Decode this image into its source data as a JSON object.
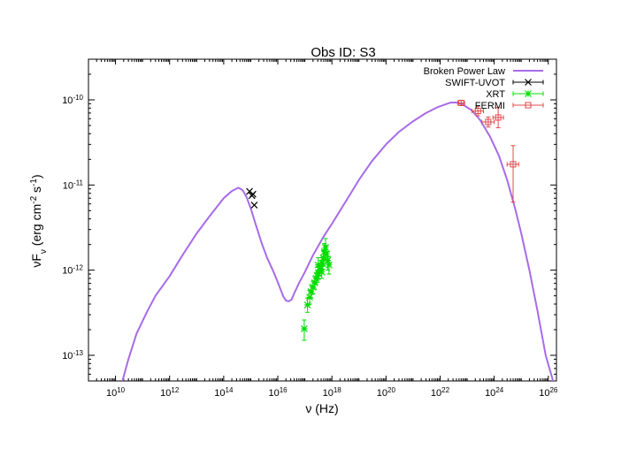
{
  "chart_data": {
    "type": "scatter",
    "title": "Obs ID: S3",
    "xlabel": "ν (Hz)",
    "ylabel": "νF_ν (erg cm^-2 s^-1)",
    "xscale": "log",
    "yscale": "log",
    "xlim": [
      1000000000.0,
      2e+26
    ],
    "ylim": [
      5e-14,
      3e-10
    ],
    "grid": false,
    "legend_position": "top-right",
    "x_ticks": [
      {
        "value": 10000000000.0,
        "base": "10",
        "exp": "10"
      },
      {
        "value": 1000000000000.0,
        "base": "10",
        "exp": "12"
      },
      {
        "value": 100000000000000.0,
        "base": "10",
        "exp": "14"
      },
      {
        "value": 1e+16,
        "base": "10",
        "exp": "16"
      },
      {
        "value": 1e+18,
        "base": "10",
        "exp": "18"
      },
      {
        "value": 1e+20,
        "base": "10",
        "exp": "20"
      },
      {
        "value": 1e+22,
        "base": "10",
        "exp": "22"
      },
      {
        "value": 1e+24,
        "base": "10",
        "exp": "24"
      },
      {
        "value": 1e+26,
        "base": "10",
        "exp": "26"
      }
    ],
    "y_ticks": [
      {
        "value": 1e-13,
        "base": "10",
        "exp": "-13"
      },
      {
        "value": 1e-12,
        "base": "10",
        "exp": "-12"
      },
      {
        "value": 1e-11,
        "base": "10",
        "exp": "-11"
      },
      {
        "value": 1e-10,
        "base": "10",
        "exp": "-10"
      }
    ],
    "series": [
      {
        "name": "Broken Power Law",
        "kind": "line",
        "color": "#a86be8",
        "x": [
          18000000000.0,
          30000000000.0,
          60000000000.0,
          150000000000.0,
          300000000000.0,
          1000000000000.0,
          3000000000000.0,
          10000000000000.0,
          30000000000000.0,
          100000000000000.0,
          200000000000000.0,
          350000000000000.0,
          500000000000000.0,
          700000000000000.0,
          1000000000000000.0,
          1500000000000000.0,
          2500000000000000.0,
          4000000000000000.0,
          7000000000000000.0,
          1e+16,
          1.3e+16,
          1.6e+16,
          2e+16,
          2.5e+16,
          3.2e+16,
          4e+16,
          6e+16,
          1e+17,
          2e+17,
          5e+17,
          1e+18,
          2e+18,
          5e+18,
          1e+19,
          3e+19,
          1e+20,
          3e+20,
          1e+21,
          3e+21,
          8e+21,
          1.5e+22,
          2.5e+22,
          4e+22,
          7e+22,
          1.5e+23,
          3e+23,
          7e+23,
          1.5e+24,
          3e+24,
          6e+24,
          1e+25,
          2e+25,
          4e+25,
          8e+25,
          1.5e+26,
          2e+26
        ],
        "y": [
          5e-14,
          9e-14,
          1.8e-13,
          3.3e-13,
          5e-13,
          8.5e-13,
          1.5e-12,
          2.7e-12,
          4.3e-12,
          7e-12,
          8.5e-12,
          9.3e-12,
          8.7e-12,
          7.2e-12,
          5.3e-12,
          3.5e-12,
          2.1e-12,
          1.4e-12,
          9.5e-13,
          7.2e-13,
          5.8e-13,
          4.9e-13,
          4.4e-13,
          4.3e-13,
          4.5e-13,
          5.3e-13,
          7e-13,
          9.5e-13,
          1.5e-12,
          2.5e-12,
          3.5e-12,
          5e-12,
          8e-12,
          1.15e-11,
          1.9e-11,
          3e-11,
          4.2e-11,
          5.6e-11,
          7e-11,
          8.2e-11,
          8.8e-11,
          9.3e-11,
          9.3e-11,
          8.8e-11,
          7.5e-11,
          5.8e-11,
          3.7e-11,
          2.2e-11,
          1.15e-11,
          5.2e-12,
          2.7e-12,
          1e-12,
          3.3e-13,
          1e-13,
          5e-14,
          3e-14
        ]
      },
      {
        "name": "SWIFT-UVOT",
        "kind": "points",
        "marker": "x",
        "color": "#000000",
        "points": [
          {
            "x": 900000000000000.0,
            "y": 8.4e-12
          },
          {
            "x": 1100000000000000.0,
            "y": 7.5e-12
          },
          {
            "x": 1200000000000000.0,
            "y": 7.8e-12
          },
          {
            "x": 1350000000000000.0,
            "y": 5.8e-12
          }
        ]
      },
      {
        "name": "XRT",
        "kind": "points",
        "marker": "asterisk",
        "color": "#00dd00",
        "points": [
          {
            "x": 9.5e+16,
            "y": 2.05e-13,
            "yerr": [
              1.5e-13,
              2.6e-13
            ]
          },
          {
            "x": 1.25e+17,
            "y": 3.9e-13,
            "yerr": [
              3.2e-13,
              4.7e-13
            ]
          },
          {
            "x": 1.5e+17,
            "y": 4.8e-13,
            "yerr": [
              4e-13,
              5.8e-13
            ]
          },
          {
            "x": 1.7e+17,
            "y": 5.6e-13,
            "yerr": [
              4.7e-13,
              6.6e-13
            ]
          },
          {
            "x": 2e+17,
            "y": 6.3e-13,
            "yerr": [
              5.3e-13,
              7.4e-13
            ]
          },
          {
            "x": 2.3e+17,
            "y": 7.1e-13,
            "yerr": [
              6e-13,
              8.4e-13
            ]
          },
          {
            "x": 2.6e+17,
            "y": 8e-13,
            "yerr": [
              6.8e-13,
              9.4e-13
            ]
          },
          {
            "x": 2.9e+17,
            "y": 8.5e-13,
            "yerr": [
              7.2e-13,
              1e-12
            ]
          },
          {
            "x": 3.2e+17,
            "y": 9.2e-13,
            "yerr": [
              7.8e-13,
              1.08e-12
            ]
          },
          {
            "x": 3.6e+17,
            "y": 1.02e-12,
            "yerr": [
              8.6e-13,
              1.2e-12
            ]
          },
          {
            "x": 4e+17,
            "y": 1.1e-12,
            "yerr": [
              9.2e-13,
              1.3e-12
            ]
          },
          {
            "x": 4.4e+17,
            "y": 1.2e-12,
            "yerr": [
              1e-12,
              1.42e-12
            ]
          },
          {
            "x": 4.8e+17,
            "y": 1.4e-12,
            "yerr": [
              1.15e-12,
              1.7e-12
            ]
          },
          {
            "x": 5.3e+17,
            "y": 1.65e-12,
            "yerr": [
              1.3e-12,
              2.05e-12
            ]
          },
          {
            "x": 5.8e+17,
            "y": 1.85e-12,
            "yerr": [
              1.45e-12,
              2.35e-12
            ]
          },
          {
            "x": 6.3e+17,
            "y": 1.55e-12,
            "yerr": [
              1.2e-12,
              1.95e-12
            ]
          },
          {
            "x": 7e+17,
            "y": 1.3e-12,
            "yerr": [
              1e-12,
              1.65e-12
            ]
          },
          {
            "x": 7.8e+17,
            "y": 1.15e-12,
            "yerr": [
              9e-13,
              1.45e-12
            ]
          },
          {
            "x": 3.1e+17,
            "y": 1.15e-12,
            "yerr": [
              9.5e-13,
              1.4e-12
            ]
          },
          {
            "x": 4.2e+17,
            "y": 9.5e-13,
            "yerr": [
              8e-13,
              1.12e-12
            ]
          }
        ]
      },
      {
        "name": "FERMI",
        "kind": "points",
        "marker": "square",
        "color": "#e04848",
        "points": [
          {
            "x": 6e+22,
            "y": 9.2e-11,
            "xerr": [
              4.5e+22,
              8e+22
            ],
            "yerr": [
              8.6e-11,
              9.8e-11
            ]
          },
          {
            "x": 2.5e+23,
            "y": 7.4e-11,
            "xerr": [
              1.5e+23,
              4e+23
            ],
            "yerr": [
              6.5e-11,
              8.4e-11
            ]
          },
          {
            "x": 6e+23,
            "y": 5.5e-11,
            "xerr": [
              3.5e+23,
              1e+24
            ],
            "yerr": [
              4.8e-11,
              6.3e-11
            ]
          },
          {
            "x": 1.4e+24,
            "y": 6.2e-11,
            "xerr": [
              9e+23,
              2.2e+24
            ],
            "yerr": [
              4.7e-11,
              8.1e-11
            ]
          },
          {
            "x": 5e+24,
            "y": 1.75e-11,
            "xerr": [
              3e+24,
              8e+24
            ],
            "yerr": [
              6.3e-12,
              2.9e-11
            ]
          }
        ]
      }
    ]
  }
}
